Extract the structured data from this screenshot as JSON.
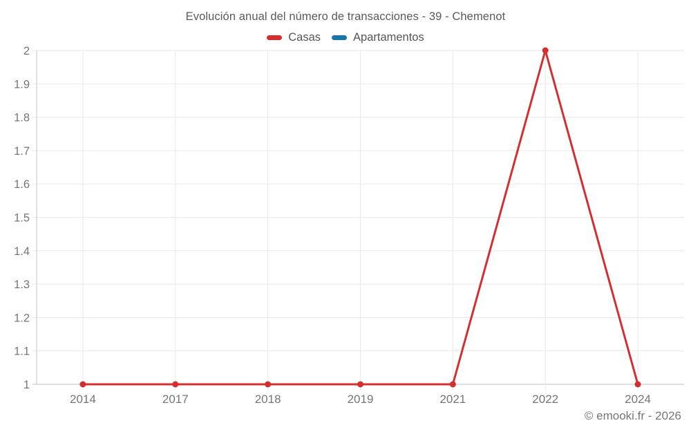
{
  "footer": {
    "credit": "© emooki.fr - 2026"
  },
  "colors": {
    "casas": "#d32f30",
    "apartamentos": "#1976a8",
    "grid": "#ebebeb",
    "axis": "#d4d4d4",
    "tick_label": "#757575",
    "title_text": "#5a5a5a"
  },
  "chart_data": {
    "type": "line",
    "title": "Evolución anual del número de transacciones - 39 - Chemenot",
    "categories": [
      "2014",
      "2017",
      "2018",
      "2019",
      "2021",
      "2022",
      "2024"
    ],
    "series": [
      {
        "name": "Casas",
        "color": "#d32f30",
        "values": [
          1,
          1,
          1,
          1,
          1,
          2,
          1
        ]
      },
      {
        "name": "Apartamentos",
        "color": "#1976a8",
        "values": []
      }
    ],
    "ylim": [
      1,
      2
    ],
    "yticks": [
      1,
      1.1,
      1.2,
      1.3,
      1.4,
      1.5,
      1.6,
      1.7,
      1.8,
      1.9,
      2
    ],
    "xlabel": "",
    "ylabel": "",
    "grid": true,
    "legend_position": "top",
    "marker_radius": 4.5,
    "line_width": 3
  }
}
